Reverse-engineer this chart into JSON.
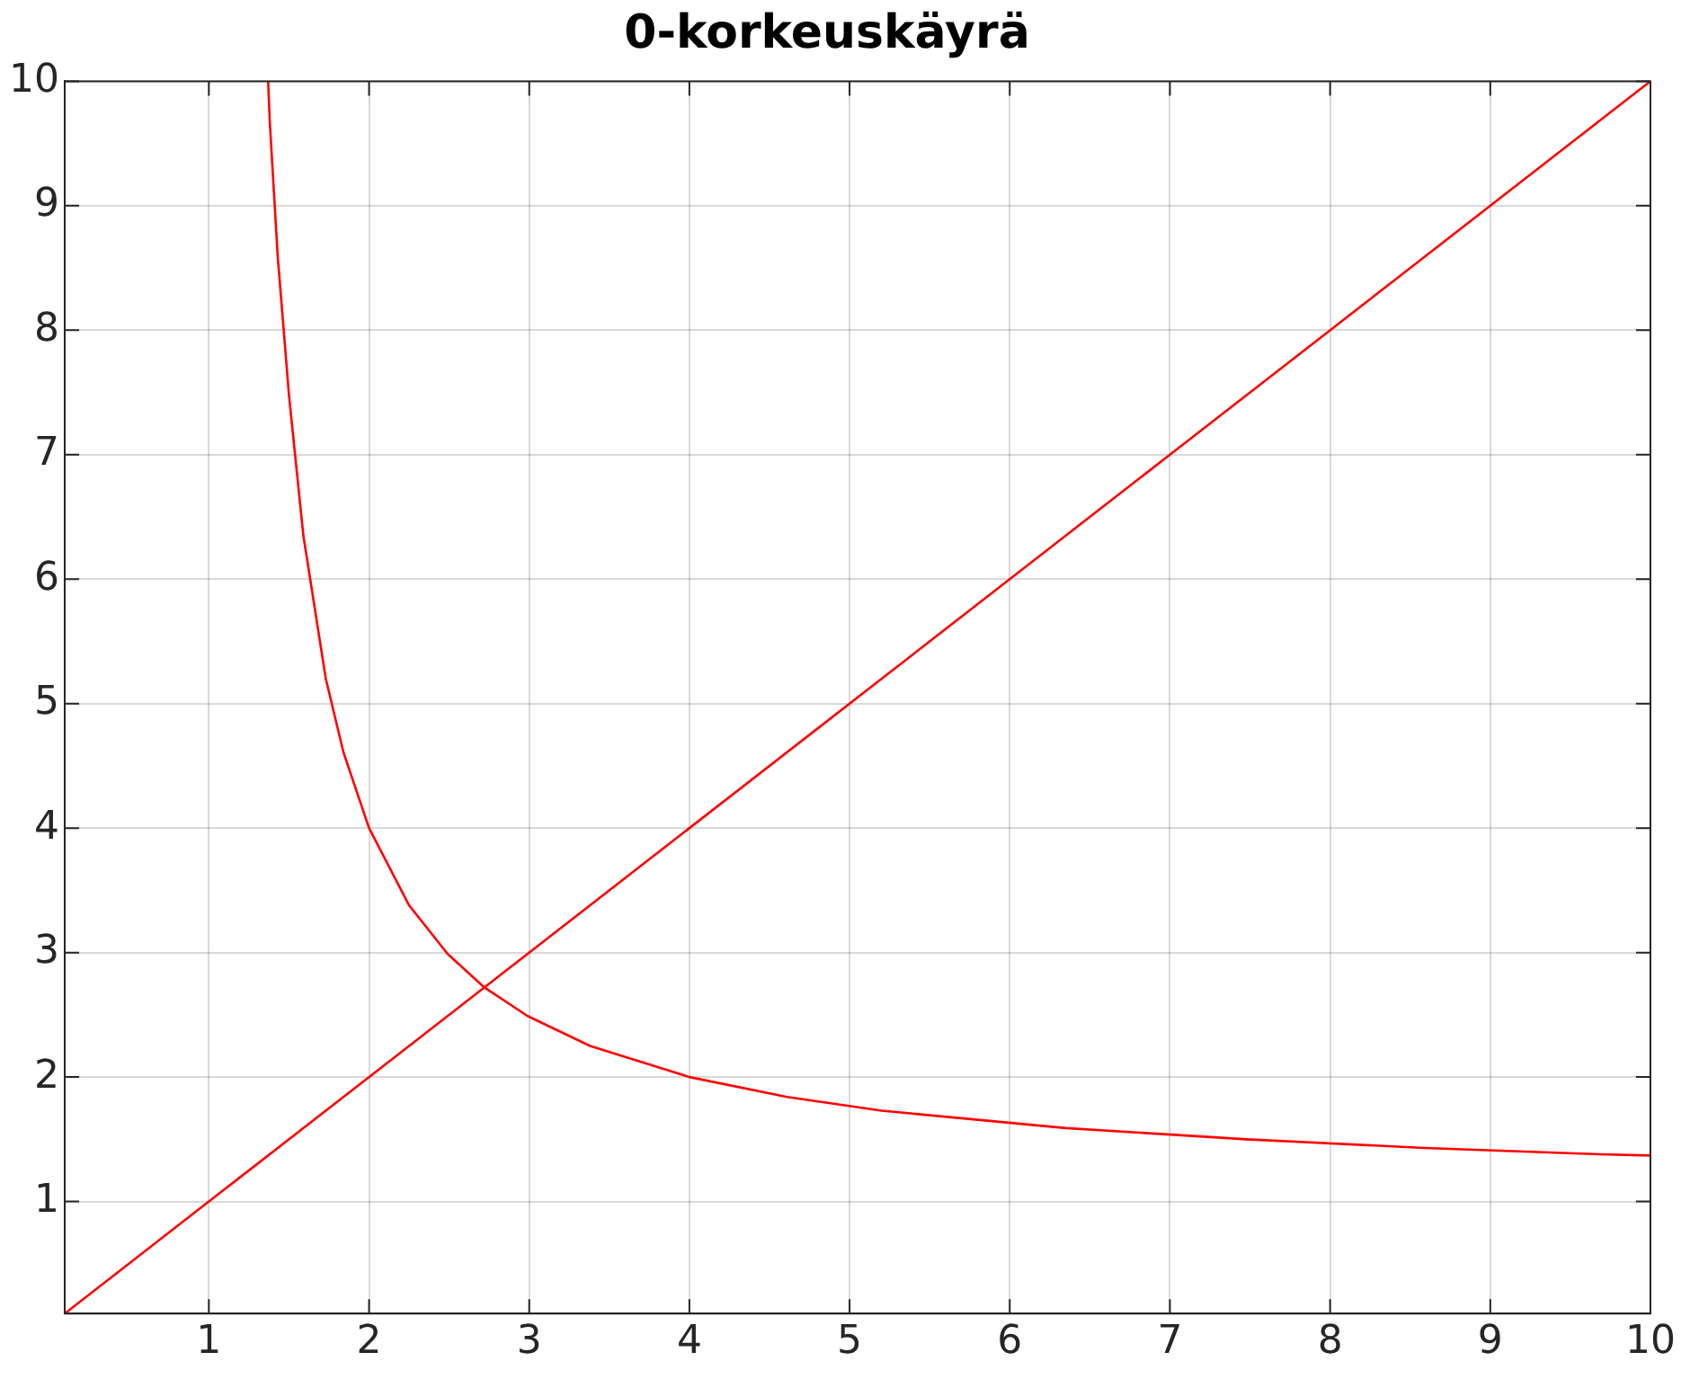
{
  "chart_data": {
    "type": "line",
    "title": "0-korkeuskäyrä",
    "xlim": [
      0.1,
      10
    ],
    "ylim": [
      0.1,
      10
    ],
    "xticks": [
      1,
      2,
      3,
      4,
      5,
      6,
      7,
      8,
      9,
      10
    ],
    "yticks": [
      1,
      2,
      3,
      4,
      5,
      6,
      7,
      8,
      9,
      10
    ],
    "grid": true,
    "legend": false,
    "marker": "none",
    "line_style": "solid",
    "series": [
      {
        "color": "#ff0000",
        "x": [
          1.37,
          1.38,
          1.43,
          1.5,
          1.59,
          1.73,
          1.84,
          2,
          2.25,
          2.49,
          2.72,
          2.99,
          3.38,
          4,
          4.61,
          5.2,
          6.35,
          7.48,
          8.59,
          9.68,
          10
        ],
        "values": [
          10,
          9.68,
          8.59,
          7.48,
          6.35,
          5.2,
          4.61,
          4,
          3.38,
          2.99,
          2.72,
          2.49,
          2.25,
          2,
          1.84,
          1.73,
          1.59,
          1.5,
          1.43,
          1.38,
          1.37
        ]
      },
      {
        "color": "#ff0000",
        "x": [
          0.1,
          10
        ],
        "values": [
          0.1,
          10
        ]
      }
    ]
  }
}
